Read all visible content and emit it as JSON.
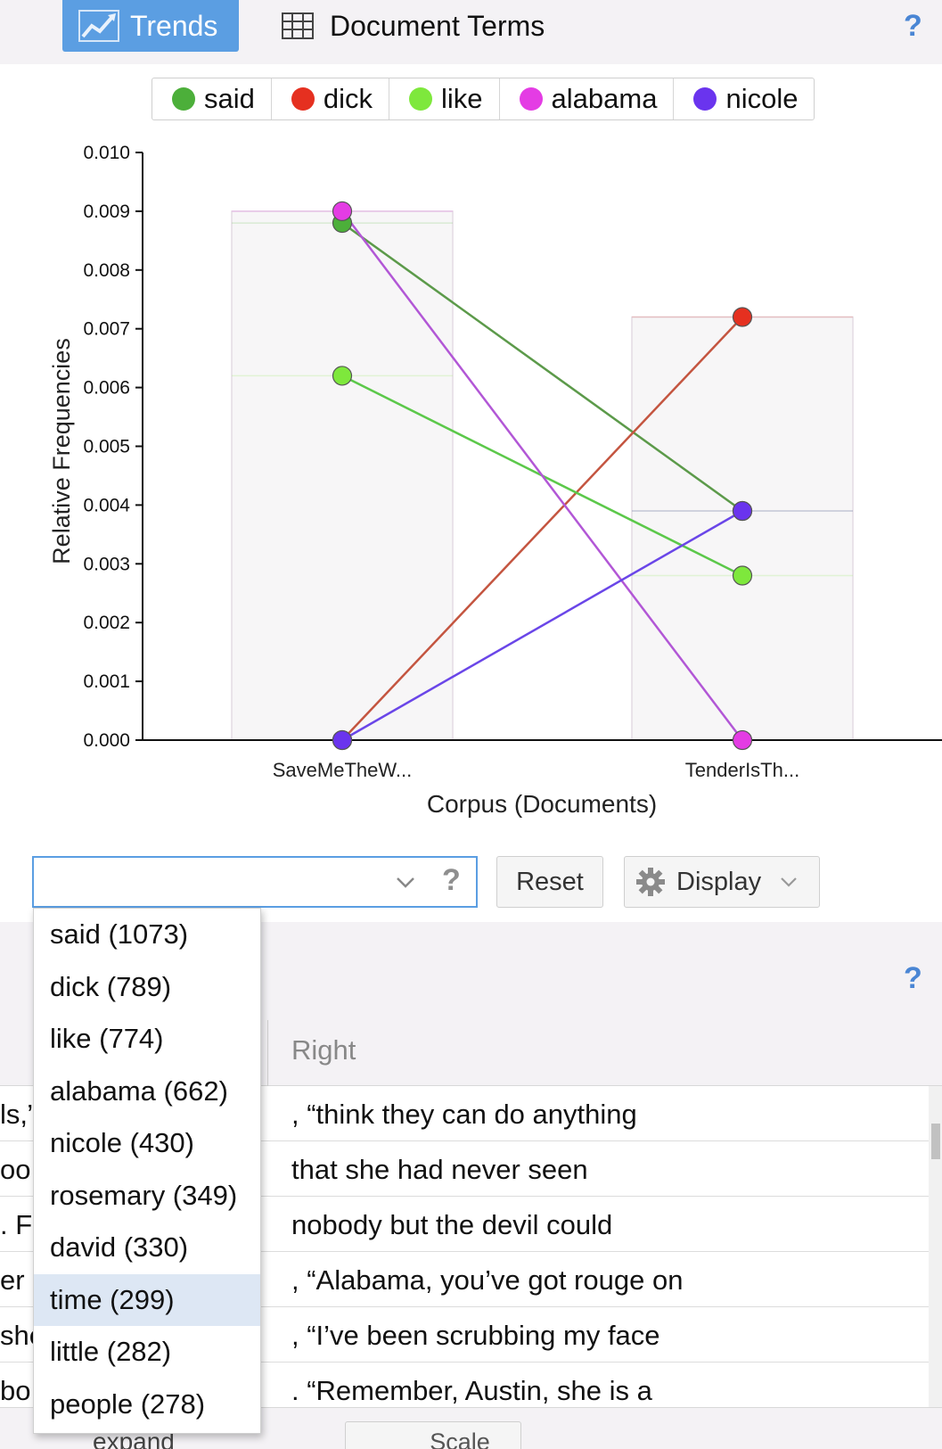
{
  "tabs": {
    "trends_label": "Trends",
    "terms_label": "Document Terms"
  },
  "help_label": "?",
  "legend": [
    {
      "label": "said",
      "color": "#4caf3a"
    },
    {
      "label": "dick",
      "color": "#e53020"
    },
    {
      "label": "like",
      "color": "#7ee83c"
    },
    {
      "label": "alabama",
      "color": "#e43ce4"
    },
    {
      "label": "nicole",
      "color": "#6a34ee"
    }
  ],
  "chart_data": {
    "type": "line",
    "ylabel": "Relative Frequencies",
    "xlabel": "Corpus (Documents)",
    "categories": [
      "SaveMeTheW...",
      "TenderIsTh..."
    ],
    "ylim": [
      0,
      0.01
    ],
    "yticks": [
      "0.000",
      "0.001",
      "0.002",
      "0.003",
      "0.004",
      "0.005",
      "0.006",
      "0.007",
      "0.008",
      "0.009",
      "0.010"
    ],
    "series": [
      {
        "name": "said",
        "color": "#4caf3a",
        "line_color": "#5c9a4a",
        "values": [
          0.0088,
          0.0039
        ]
      },
      {
        "name": "dick",
        "color": "#e53020",
        "line_color": "#c45540",
        "values": [
          0.0,
          0.0072
        ]
      },
      {
        "name": "like",
        "color": "#7ee83c",
        "line_color": "#5cc84a",
        "values": [
          0.0062,
          0.0028
        ]
      },
      {
        "name": "alabama",
        "color": "#e43ce4",
        "line_color": "#b257d6",
        "values": [
          0.009,
          0.0
        ]
      },
      {
        "name": "nicole",
        "color": "#6a34ee",
        "line_color": "#6a46e8",
        "values": [
          0.0,
          0.0039
        ]
      }
    ],
    "background_bars": [
      0.009,
      0.0072
    ]
  },
  "controls": {
    "search_value": "",
    "help_label": "?",
    "reset_label": "Reset",
    "display_label": "Display"
  },
  "dropdown_options": [
    "said (1073)",
    "dick (789)",
    "like (774)",
    "alabama (662)",
    "nicole (430)",
    "rosemary (349)",
    "david (330)",
    "time (299)",
    "little (282)",
    "people (278)"
  ],
  "grid": {
    "col_right": "Right",
    "rows": [
      {
        "left": "ls,”",
        "right": ", “think they can do anything"
      },
      {
        "left": "oo",
        "right": "that she had never seen"
      },
      {
        "left": ". F",
        "right": "nobody but the devil could"
      },
      {
        "left": "er",
        "right": ", “Alabama, you’ve got rouge on"
      },
      {
        "left": "she",
        "right": ", “I’ve been scrubbing my face"
      },
      {
        "left": "bo",
        "right": ". “Remember, Austin, she is a"
      }
    ]
  },
  "bottom": {
    "expand_label": "expand",
    "scale_label": "Scale"
  }
}
